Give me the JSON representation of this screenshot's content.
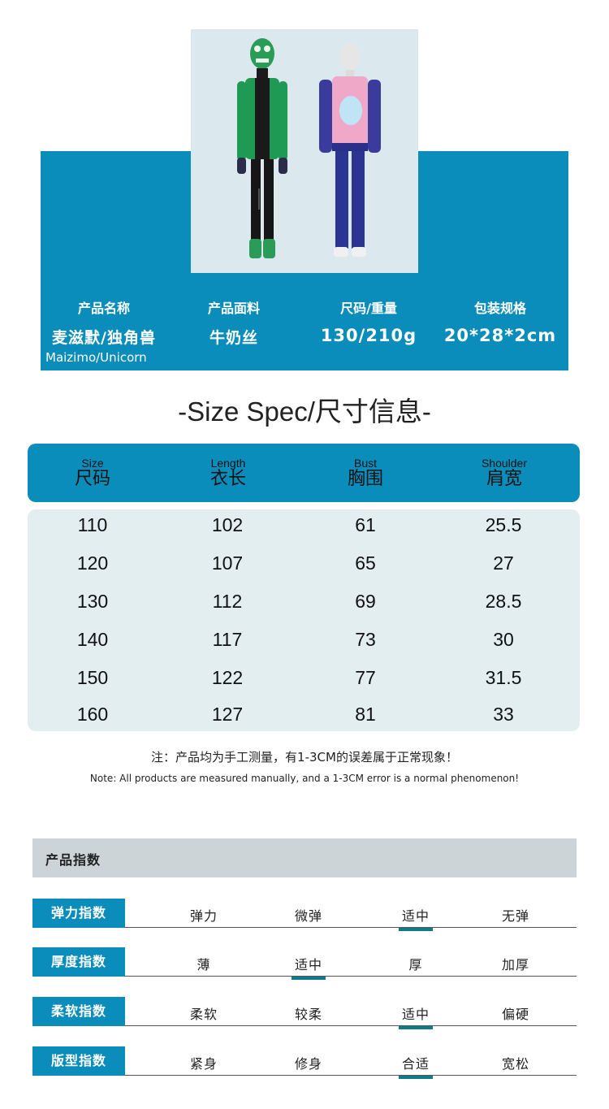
{
  "product_info": {
    "items": [
      {
        "label": "产品名称",
        "value": "麦滋默/独角兽",
        "sub": "Maizimo/Unicorn"
      },
      {
        "label": "产品面料",
        "value": "牛奶丝"
      },
      {
        "label": "尺码/重量",
        "value": "130/210g"
      },
      {
        "label": "包装规格",
        "value": "20*28*2cm"
      }
    ]
  },
  "size_spec": {
    "title": "-Size Spec/尺寸信息-",
    "columns": [
      {
        "en": "Size",
        "cn": "尺码"
      },
      {
        "en": "Length",
        "cn": "衣长"
      },
      {
        "en": "Bust",
        "cn": "胸围"
      },
      {
        "en": "Shoulder",
        "cn": "肩宽"
      }
    ],
    "rows": [
      [
        "110",
        "102",
        "61",
        "25.5"
      ],
      [
        "120",
        "107",
        "65",
        "27"
      ],
      [
        "130",
        "112",
        "69",
        "28.5"
      ],
      [
        "140",
        "117",
        "73",
        "30"
      ],
      [
        "150",
        "122",
        "77",
        "31.5"
      ],
      [
        "160",
        "127",
        "81",
        "33"
      ]
    ],
    "note_cn": "注：产品均为手工测量，有1-3CM的误差属于正常现象！",
    "note_en": "Note: All products are measured manually, and a 1-3CM error is a normal phenomenon!"
  },
  "indices": {
    "title": "产品指数",
    "rows": [
      {
        "label": "弹力指数",
        "options": [
          "弹力",
          "微弹",
          "适中",
          "无弹"
        ],
        "selected": 2
      },
      {
        "label": "厚度指数",
        "options": [
          "薄",
          "适中",
          "厚",
          "加厚"
        ],
        "selected": 1
      },
      {
        "label": "柔软指数",
        "options": [
          "柔软",
          "较柔",
          "适中",
          "偏硬"
        ],
        "selected": 2
      },
      {
        "label": "版型指数",
        "options": [
          "紧身",
          "修身",
          "合适",
          "宽松"
        ],
        "selected": 2
      }
    ]
  },
  "colors": {
    "accent": "#0a8dbb",
    "table_bg": "#e3eef1",
    "index_header_bg": "#ccd4d7",
    "selected_underline": "#0e7a8c"
  }
}
